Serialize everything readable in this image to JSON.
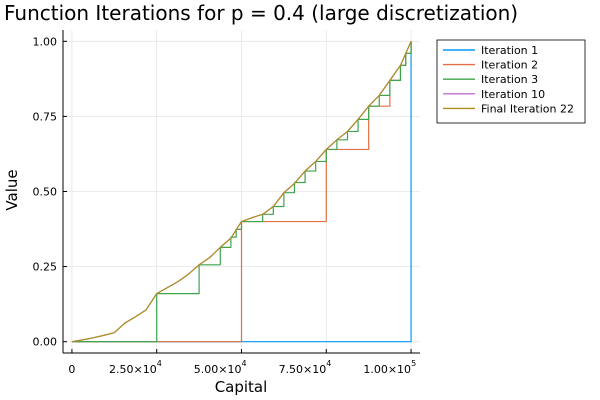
{
  "chart_data": {
    "type": "line",
    "title": "Function Iterations for p = 0.4 (large discretization)",
    "xlabel": "Capital",
    "ylabel": "Value",
    "xlim": [
      0,
      100000
    ],
    "ylim": [
      0,
      1
    ],
    "grid": true,
    "legend_position": "top-right-outside",
    "x_ticks": [
      {
        "value": 0,
        "label": "0"
      },
      {
        "value": 25000,
        "label": "2.50×10",
        "exp": "4"
      },
      {
        "value": 50000,
        "label": "5.00×10",
        "exp": "4"
      },
      {
        "value": 75000,
        "label": "7.50×10",
        "exp": "4"
      },
      {
        "value": 100000,
        "label": "1.00×10",
        "exp": "5"
      }
    ],
    "y_ticks": [
      {
        "value": 0,
        "label": "0.00"
      },
      {
        "value": 0.25,
        "label": "0.25"
      },
      {
        "value": 0.5,
        "label": "0.50"
      },
      {
        "value": 0.75,
        "label": "0.75"
      },
      {
        "value": 1,
        "label": "1.00"
      }
    ],
    "series": [
      {
        "name": "Iteration 1",
        "color": "#009AFA",
        "step": true,
        "points": [
          [
            0,
            0
          ],
          [
            100000,
            0
          ],
          [
            100000,
            1
          ]
        ]
      },
      {
        "name": "Iteration 2",
        "color": "#E26F46",
        "step": true,
        "points": [
          [
            0,
            0
          ],
          [
            50000,
            0
          ],
          [
            50000,
            0.4
          ],
          [
            75000,
            0.4
          ],
          [
            75000,
            0.64
          ],
          [
            87500,
            0.64
          ],
          [
            87500,
            0.784
          ],
          [
            93750,
            0.784
          ],
          [
            93750,
            0.87
          ],
          [
            96875,
            0.87
          ],
          [
            96875,
            0.92
          ],
          [
            98438,
            0.92
          ],
          [
            98438,
            0.96
          ],
          [
            100000,
            0.96
          ],
          [
            100000,
            1
          ]
        ]
      },
      {
        "name": "Iteration 3",
        "color": "#3EA44E",
        "step": true,
        "points": [
          [
            0,
            0
          ],
          [
            25000,
            0
          ],
          [
            25000,
            0.16
          ],
          [
            37500,
            0.16
          ],
          [
            37500,
            0.256
          ],
          [
            43750,
            0.256
          ],
          [
            43750,
            0.314
          ],
          [
            46875,
            0.314
          ],
          [
            46875,
            0.348
          ],
          [
            48438,
            0.348
          ],
          [
            48438,
            0.374
          ],
          [
            50000,
            0.374
          ],
          [
            50000,
            0.4
          ],
          [
            56250,
            0.4
          ],
          [
            56250,
            0.424
          ],
          [
            59375,
            0.424
          ],
          [
            59375,
            0.45
          ],
          [
            62500,
            0.45
          ],
          [
            62500,
            0.496
          ],
          [
            65625,
            0.496
          ],
          [
            65625,
            0.53
          ],
          [
            68750,
            0.53
          ],
          [
            68750,
            0.568
          ],
          [
            71875,
            0.568
          ],
          [
            71875,
            0.6
          ],
          [
            75000,
            0.6
          ],
          [
            75000,
            0.64
          ],
          [
            78125,
            0.64
          ],
          [
            78125,
            0.672
          ],
          [
            81250,
            0.672
          ],
          [
            81250,
            0.7
          ],
          [
            84375,
            0.7
          ],
          [
            84375,
            0.74
          ],
          [
            87500,
            0.74
          ],
          [
            87500,
            0.784
          ],
          [
            90625,
            0.784
          ],
          [
            90625,
            0.82
          ],
          [
            93750,
            0.82
          ],
          [
            93750,
            0.87
          ],
          [
            96875,
            0.87
          ],
          [
            96875,
            0.92
          ],
          [
            98438,
            0.92
          ],
          [
            98438,
            0.96
          ],
          [
            100000,
            0.96
          ],
          [
            100000,
            1
          ]
        ]
      },
      {
        "name": "Iteration 10",
        "color": "#C271D2",
        "step": false,
        "points": [
          [
            0,
            0
          ],
          [
            3125,
            0.006
          ],
          [
            6250,
            0.013
          ],
          [
            9375,
            0.021
          ],
          [
            12500,
            0.03
          ],
          [
            15625,
            0.062
          ],
          [
            18750,
            0.083
          ],
          [
            21875,
            0.106
          ],
          [
            25000,
            0.16
          ],
          [
            28125,
            0.18
          ],
          [
            31250,
            0.2
          ],
          [
            34375,
            0.225
          ],
          [
            37500,
            0.256
          ],
          [
            40625,
            0.28
          ],
          [
            43750,
            0.314
          ],
          [
            46875,
            0.345
          ],
          [
            50000,
            0.4
          ],
          [
            53125,
            0.413
          ],
          [
            56250,
            0.424
          ],
          [
            59375,
            0.45
          ],
          [
            62500,
            0.496
          ],
          [
            65625,
            0.527
          ],
          [
            68750,
            0.568
          ],
          [
            71875,
            0.6
          ],
          [
            75000,
            0.64
          ],
          [
            78125,
            0.672
          ],
          [
            81250,
            0.7
          ],
          [
            84375,
            0.74
          ],
          [
            87500,
            0.784
          ],
          [
            90625,
            0.82
          ],
          [
            93750,
            0.87
          ],
          [
            96875,
            0.92
          ],
          [
            100000,
            1
          ]
        ]
      },
      {
        "name": "Final Iteration 22",
        "color": "#AC8E18",
        "step": false,
        "points": [
          [
            0,
            0
          ],
          [
            3125,
            0.006
          ],
          [
            6250,
            0.013
          ],
          [
            9375,
            0.021
          ],
          [
            12500,
            0.03
          ],
          [
            15625,
            0.062
          ],
          [
            18750,
            0.083
          ],
          [
            21875,
            0.106
          ],
          [
            25000,
            0.16
          ],
          [
            28125,
            0.18
          ],
          [
            31250,
            0.2
          ],
          [
            34375,
            0.225
          ],
          [
            37500,
            0.256
          ],
          [
            40625,
            0.28
          ],
          [
            43750,
            0.314
          ],
          [
            46875,
            0.345
          ],
          [
            50000,
            0.4
          ],
          [
            53125,
            0.413
          ],
          [
            56250,
            0.424
          ],
          [
            59375,
            0.45
          ],
          [
            62500,
            0.496
          ],
          [
            65625,
            0.527
          ],
          [
            68750,
            0.568
          ],
          [
            71875,
            0.6
          ],
          [
            75000,
            0.64
          ],
          [
            78125,
            0.672
          ],
          [
            81250,
            0.7
          ],
          [
            84375,
            0.74
          ],
          [
            87500,
            0.784
          ],
          [
            90625,
            0.82
          ],
          [
            93750,
            0.87
          ],
          [
            96875,
            0.92
          ],
          [
            100000,
            1
          ]
        ]
      }
    ]
  }
}
